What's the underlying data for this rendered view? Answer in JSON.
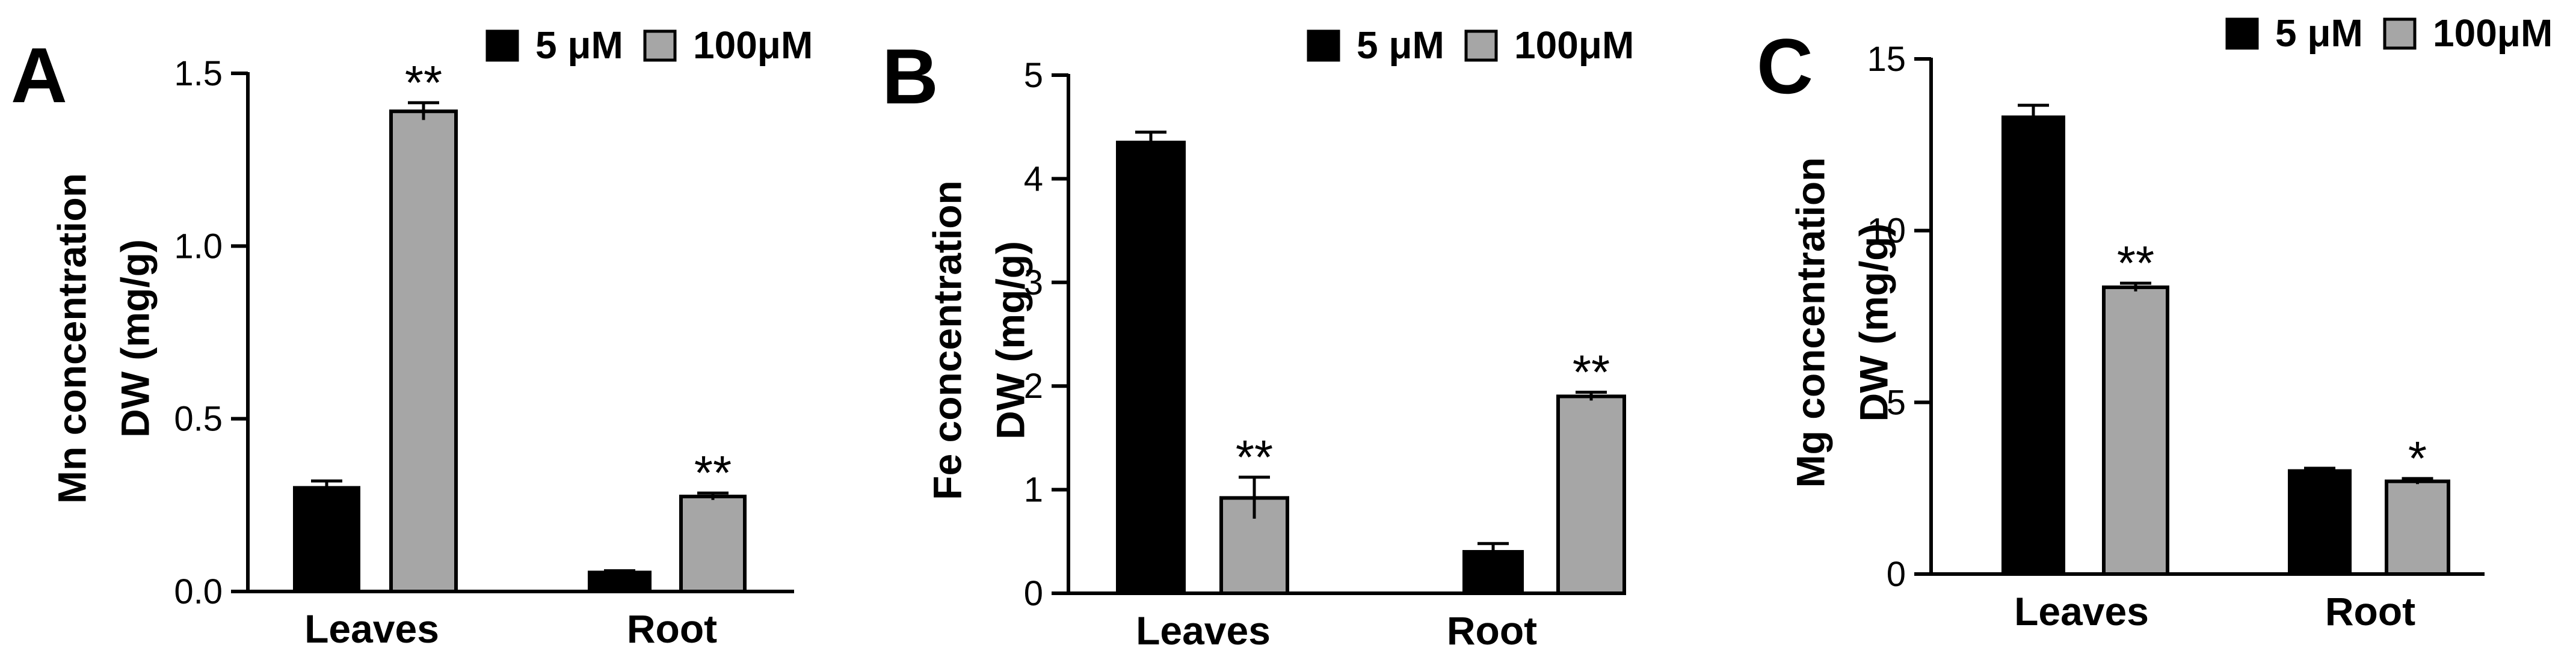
{
  "legend": {
    "labels": [
      "5 μM",
      "100μM"
    ],
    "colors": [
      "#000000",
      "#a6a6a6"
    ]
  },
  "chart_data": [
    {
      "type": "bar",
      "panel_label": "A",
      "title": "",
      "ylabel_lines": [
        "Mn concentration",
        "DW (mg/g)"
      ],
      "xlabel": "",
      "categories": [
        "Leaves",
        "Root"
      ],
      "ylim": [
        0,
        1.5
      ],
      "yticks": [
        0.0,
        0.5,
        1.0,
        1.5
      ],
      "ytick_labels": [
        "0.0",
        "0.5",
        "1.0",
        "1.5"
      ],
      "series": [
        {
          "name": "5 μM",
          "color": "#000000",
          "values": [
            0.3,
            0.055
          ],
          "errors": [
            0.02,
            0.005
          ],
          "significance": [
            "",
            ""
          ]
        },
        {
          "name": "100μM",
          "color": "#a6a6a6",
          "values": [
            1.39,
            0.275
          ],
          "errors": [
            0.025,
            0.01
          ],
          "significance": [
            "**",
            "**"
          ]
        }
      ]
    },
    {
      "type": "bar",
      "panel_label": "B",
      "title": "",
      "ylabel_lines": [
        "Fe concentration",
        "DW (mg/g)"
      ],
      "xlabel": "",
      "categories": [
        "Leaves",
        "Root"
      ],
      "ylim": [
        0,
        5
      ],
      "yticks": [
        0,
        1,
        2,
        3,
        4,
        5
      ],
      "ytick_labels": [
        "0",
        "1",
        "2",
        "3",
        "4",
        "5"
      ],
      "series": [
        {
          "name": "5 μM",
          "color": "#000000",
          "values": [
            4.35,
            0.4
          ],
          "errors": [
            0.1,
            0.08
          ],
          "significance": [
            "",
            ""
          ]
        },
        {
          "name": "100μM",
          "color": "#a6a6a6",
          "values": [
            0.92,
            1.9
          ],
          "errors": [
            0.2,
            0.04
          ],
          "significance": [
            "**",
            "**"
          ]
        }
      ]
    },
    {
      "type": "bar",
      "panel_label": "C",
      "title": "",
      "ylabel_lines": [
        "Mg concentration",
        "DW (mg/g)"
      ],
      "xlabel": "",
      "categories": [
        "Leaves",
        "Root"
      ],
      "ylim": [
        0,
        15
      ],
      "yticks": [
        0,
        5,
        10,
        15
      ],
      "ytick_labels": [
        "0",
        "5",
        "10",
        "15"
      ],
      "series": [
        {
          "name": "5 μM",
          "color": "#000000",
          "values": [
            13.3,
            3.0
          ],
          "errors": [
            0.35,
            0.08
          ],
          "significance": [
            "",
            ""
          ]
        },
        {
          "name": "100μM",
          "color": "#a6a6a6",
          "values": [
            8.35,
            2.7
          ],
          "errors": [
            0.12,
            0.08
          ],
          "significance": [
            "**",
            "*"
          ]
        }
      ]
    }
  ]
}
